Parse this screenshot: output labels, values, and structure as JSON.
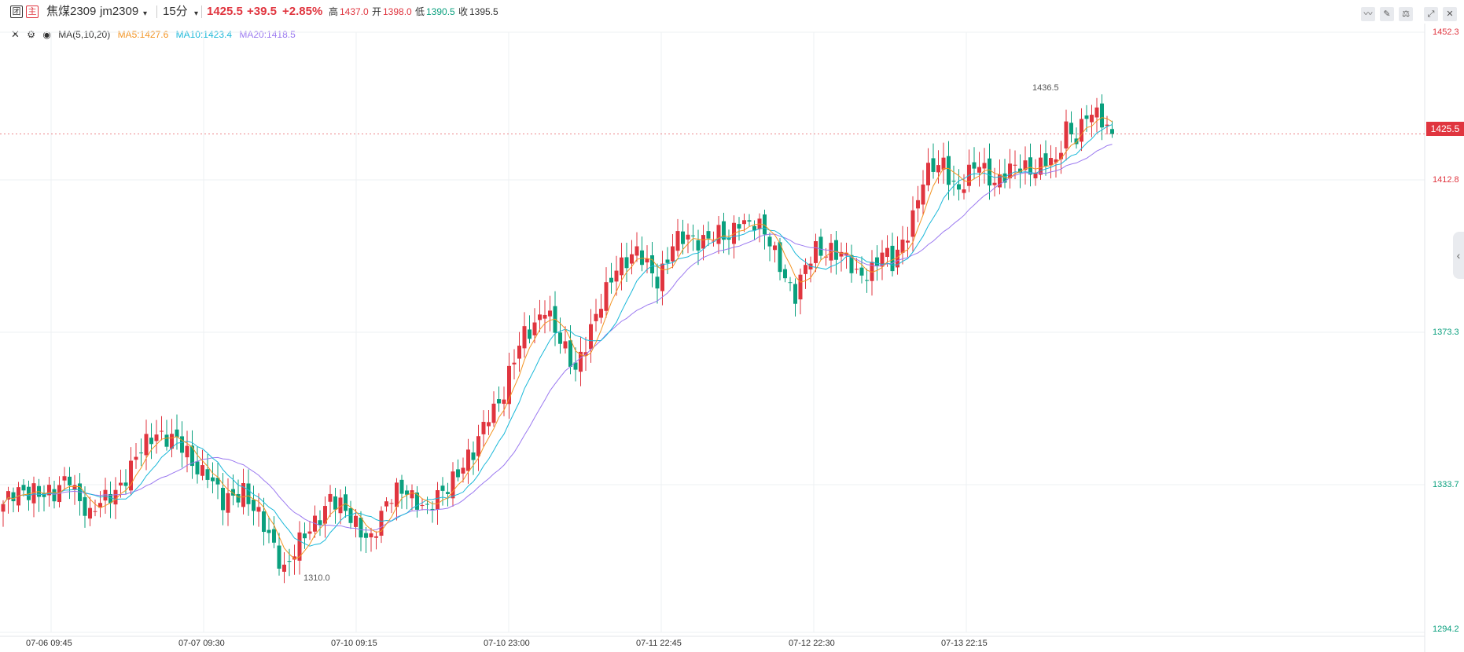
{
  "header": {
    "lock_icon_glyph": "团",
    "main_icon_glyph": "主",
    "symbol_name": "焦煤2309",
    "symbol_code": "jm2309",
    "period": "15分",
    "last_price": "1425.5",
    "change": "+39.5",
    "change_pct": "+2.85%",
    "high_label": "高",
    "high_value": "1437.0",
    "open_label": "开",
    "open_value": "1398.0",
    "low_label": "低",
    "low_value": "1390.5",
    "close_label": "收",
    "close_value": "1395.5"
  },
  "toolbar": {
    "buttons": [
      "line-tool-icon",
      "draw-tool-icon",
      "indicator-tool-icon",
      "expand-icon",
      "close-icon"
    ]
  },
  "indicator": {
    "name": "MA(5,10,20)",
    "ma5_label": "MA5:1427.6",
    "ma10_label": "MA10:1423.4",
    "ma20_label": "MA20:1418.5"
  },
  "colors": {
    "up": "#e0353f",
    "down": "#0aa07e",
    "ma5": "#f39423",
    "ma10": "#1ab8d9",
    "ma20": "#9b79f0",
    "grid": "#eef0f3"
  },
  "chart_data": {
    "type": "candlestick",
    "ylim": [
      1294.2,
      1452.3
    ],
    "y_ticks": [
      "1452.3",
      "1412.8",
      "1373.3",
      "1333.7",
      "1294.2"
    ],
    "current_price_badge": "1425.5",
    "x_labels": [
      "07-06 09:45",
      "07-07 09:30",
      "07-10 09:15",
      "07-10 23:00",
      "07-11 22:45",
      "07-12 22:30",
      "07-13 22:15"
    ],
    "annotations": {
      "high": "1436.5",
      "low": "1310.0"
    },
    "close_path_anchors": [
      [
        0,
        1328
      ],
      [
        3,
        1330
      ],
      [
        6,
        1333
      ],
      [
        10,
        1329
      ],
      [
        13,
        1336
      ],
      [
        17,
        1324
      ],
      [
        21,
        1331
      ],
      [
        25,
        1337
      ],
      [
        30,
        1348
      ],
      [
        33,
        1345
      ],
      [
        37,
        1339
      ],
      [
        40,
        1337
      ],
      [
        43,
        1327
      ],
      [
        47,
        1333
      ],
      [
        51,
        1321
      ],
      [
        55,
        1312
      ],
      [
        57,
        1316
      ],
      [
        60,
        1320
      ],
      [
        64,
        1331
      ],
      [
        68,
        1323
      ],
      [
        72,
        1320
      ],
      [
        77,
        1331
      ],
      [
        79,
        1333
      ],
      [
        83,
        1325
      ],
      [
        88,
        1336
      ],
      [
        92,
        1340
      ],
      [
        95,
        1353
      ],
      [
        98,
        1357
      ],
      [
        102,
        1373
      ],
      [
        106,
        1380
      ],
      [
        108,
        1372
      ],
      [
        112,
        1365
      ],
      [
        116,
        1376
      ],
      [
        120,
        1392
      ],
      [
        124,
        1393
      ],
      [
        128,
        1388
      ],
      [
        131,
        1396
      ],
      [
        135,
        1398
      ],
      [
        138,
        1399
      ],
      [
        142,
        1397
      ],
      [
        144,
        1404
      ],
      [
        147,
        1402
      ],
      [
        152,
        1392
      ],
      [
        155,
        1383
      ],
      [
        159,
        1395
      ],
      [
        162,
        1396
      ],
      [
        164,
        1393
      ],
      [
        167,
        1388
      ],
      [
        170,
        1391
      ],
      [
        172,
        1394
      ],
      [
        174,
        1390
      ],
      [
        177,
        1401
      ],
      [
        180,
        1413
      ],
      [
        184,
        1418
      ],
      [
        187,
        1411
      ],
      [
        191,
        1417
      ],
      [
        194,
        1414
      ],
      [
        197,
        1415
      ],
      [
        201,
        1417
      ],
      [
        204,
        1419
      ],
      [
        206,
        1416
      ],
      [
        208,
        1427
      ],
      [
        210,
        1426
      ],
      [
        212,
        1431
      ],
      [
        215,
        1428
      ],
      [
        217,
        1425.5
      ]
    ],
    "total_bars": 218
  }
}
